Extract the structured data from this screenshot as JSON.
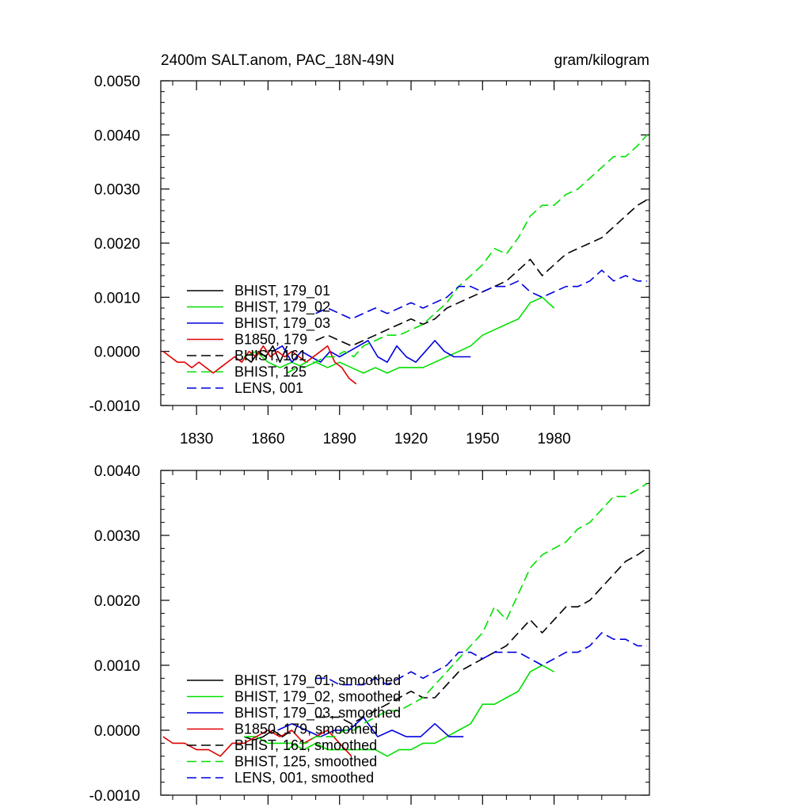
{
  "chart_data": [
    {
      "type": "line",
      "title": "2400m SALT.anom, PAC_18N-49N",
      "units_label": "gram/kilogram",
      "xlabel": "",
      "ylabel": "",
      "xlim": [
        1815,
        2020
      ],
      "ylim": [
        -0.001,
        0.005
      ],
      "xticks": [
        1830,
        1860,
        1890,
        1920,
        1950,
        1980
      ],
      "xtick_labels": [
        "1830",
        "1860",
        "1890",
        "1920",
        "1950",
        "1980"
      ],
      "yticks": [
        -0.001,
        0.0,
        0.001,
        0.002,
        0.003,
        0.004,
        0.005
      ],
      "ytick_labels": [
        "-0.0010",
        "0.0000",
        "0.0010",
        "0.0020",
        "0.0030",
        "0.0040",
        "0.0050"
      ],
      "series": [
        {
          "name": "BHIST, 179_01",
          "color": "#000000",
          "dash": false,
          "x": [
            1850,
            1853,
            1856,
            1859,
            1862,
            1865,
            1868
          ],
          "y": [
            -0.0001,
            -0.0002,
            0.0,
            -0.0001,
            0.0001,
            -0.0002,
            0.0001
          ]
        },
        {
          "name": "BHIST, 179_02",
          "color": "#00e000",
          "dash": false,
          "x": [
            1850,
            1855,
            1860,
            1865,
            1870,
            1875,
            1880,
            1885,
            1890,
            1895,
            1900,
            1905,
            1910,
            1915,
            1920,
            1925,
            1930,
            1935,
            1940,
            1945,
            1950,
            1955,
            1960,
            1965,
            1970,
            1975,
            1980
          ],
          "y": [
            -0.0001,
            0.0,
            -0.0002,
            -0.0003,
            -0.0002,
            -0.0003,
            -0.0002,
            -0.0003,
            -0.0002,
            -0.0003,
            -0.0004,
            -0.0003,
            -0.0004,
            -0.0003,
            -0.0003,
            -0.0003,
            -0.0002,
            -0.0001,
            0.0,
            0.0001,
            0.0003,
            0.0004,
            0.0005,
            0.0006,
            0.0009,
            0.001,
            0.0008
          ]
        },
        {
          "name": "BHIST, 179_03",
          "color": "#0000e0",
          "dash": false,
          "x": [
            1862,
            1866,
            1870,
            1874,
            1878,
            1882,
            1886,
            1890,
            1894,
            1898,
            1902,
            1906,
            1910,
            1914,
            1918,
            1922,
            1926,
            1930,
            1934,
            1938,
            1942,
            1945
          ],
          "y": [
            0.0,
            0.0001,
            -0.0002,
            0.0,
            -0.0001,
            -0.0002,
            0.0,
            -0.0001,
            0.0,
            0.0001,
            0.0002,
            -0.0001,
            -0.0002,
            0.0001,
            -0.0001,
            -0.0002,
            0.0,
            0.0002,
            0.0,
            -0.0001,
            -0.0001,
            -0.0001
          ]
        },
        {
          "name": "B1850, 179",
          "color": "#e00000",
          "dash": false,
          "x": [
            1816,
            1819,
            1822,
            1825,
            1828,
            1831,
            1834,
            1837,
            1840,
            1843,
            1846,
            1849,
            1852,
            1855,
            1858,
            1861,
            1864,
            1867,
            1870,
            1873,
            1876,
            1879,
            1882,
            1885,
            1888,
            1891,
            1894,
            1897
          ],
          "y": [
            0.0,
            -0.0001,
            -0.0002,
            -0.0002,
            -0.0003,
            -0.0002,
            -0.0003,
            -0.0004,
            -0.0003,
            -0.0002,
            -0.0001,
            -0.0002,
            0.0,
            -0.0001,
            0.0001,
            -0.0001,
            0.0,
            -0.0001,
            0.0,
            -0.0001,
            -0.0002,
            -0.0001,
            0.0,
            0.0001,
            -0.0002,
            -0.0003,
            -0.0005,
            -0.0006
          ]
        },
        {
          "name": "BHIST, 161",
          "color": "#000000",
          "dash": true,
          "x": [
            1880,
            1885,
            1890,
            1895,
            1900,
            1905,
            1910,
            1915,
            1920,
            1925,
            1930,
            1935,
            1940,
            1945,
            1950,
            1955,
            1960,
            1965,
            1970,
            1975,
            1980,
            1985,
            1990,
            1995,
            2000,
            2005,
            2010,
            2015,
            2019
          ],
          "y": [
            0.0002,
            0.0003,
            0.0002,
            0.0001,
            0.0002,
            0.0003,
            0.0004,
            0.0005,
            0.0006,
            0.0005,
            0.0006,
            0.0008,
            0.0009,
            0.001,
            0.0011,
            0.0012,
            0.0013,
            0.0015,
            0.0017,
            0.0014,
            0.0016,
            0.0018,
            0.0019,
            0.002,
            0.0021,
            0.0023,
            0.0025,
            0.0027,
            0.0028
          ]
        },
        {
          "name": "BHIST, 125",
          "color": "#00e000",
          "dash": true,
          "x": [
            1868,
            1872,
            1876,
            1880,
            1884,
            1888,
            1892,
            1896,
            1900,
            1905,
            1910,
            1915,
            1920,
            1925,
            1930,
            1935,
            1940,
            1945,
            1950,
            1955,
            1960,
            1965,
            1970,
            1975,
            1980,
            1985,
            1990,
            1995,
            2000,
            2005,
            2010,
            2015,
            2019
          ],
          "y": [
            -0.0004,
            -0.0003,
            -0.0002,
            -0.0002,
            -0.0001,
            -0.0001,
            0.0,
            -0.0001,
            0.0001,
            0.0002,
            0.0003,
            0.0003,
            0.0004,
            0.0005,
            0.0007,
            0.0009,
            0.0012,
            0.0014,
            0.0016,
            0.0019,
            0.0018,
            0.0021,
            0.0025,
            0.0027,
            0.0027,
            0.0029,
            0.003,
            0.0032,
            0.0034,
            0.0036,
            0.0036,
            0.0038,
            0.004
          ]
        },
        {
          "name": "LENS, 001",
          "color": "#0000e0",
          "dash": true,
          "x": [
            1880,
            1885,
            1890,
            1895,
            1900,
            1905,
            1910,
            1915,
            1920,
            1925,
            1930,
            1935,
            1940,
            1945,
            1950,
            1955,
            1960,
            1965,
            1970,
            1975,
            1980,
            1985,
            1990,
            1995,
            2000,
            2005,
            2010,
            2015,
            2019
          ],
          "y": [
            0.0007,
            0.0008,
            0.0007,
            0.0006,
            0.0007,
            0.0008,
            0.0007,
            0.0008,
            0.0009,
            0.0008,
            0.0009,
            0.001,
            0.0012,
            0.0012,
            0.0011,
            0.0012,
            0.0012,
            0.0013,
            0.0011,
            0.001,
            0.0011,
            0.0012,
            0.0012,
            0.0013,
            0.0015,
            0.0013,
            0.0014,
            0.0013,
            0.0013
          ]
        }
      ],
      "legend_position": "lower-left"
    },
    {
      "type": "line",
      "title": "",
      "xlabel": "",
      "ylabel": "",
      "xlim": [
        1815,
        2020
      ],
      "ylim": [
        -0.001,
        0.004
      ],
      "xticks": [
        1830,
        1860,
        1890,
        1920,
        1950,
        1980
      ],
      "xtick_labels": [],
      "yticks": [
        -0.001,
        0.0,
        0.001,
        0.002,
        0.003,
        0.004
      ],
      "ytick_labels": [
        "-0.0010",
        "0.0000",
        "0.0010",
        "0.0020",
        "0.0030",
        "0.0040"
      ],
      "series": [
        {
          "name": "BHIST, 179_01, smoothed",
          "color": "#000000",
          "dash": false,
          "x": [
            1850,
            1854,
            1858,
            1862,
            1866,
            1870
          ],
          "y": [
            -0.0001,
            -0.00015,
            -0.0001,
            0.0,
            -0.0001,
            0.0
          ]
        },
        {
          "name": "BHIST, 179_02, smoothed",
          "color": "#00e000",
          "dash": false,
          "x": [
            1850,
            1855,
            1860,
            1865,
            1870,
            1875,
            1880,
            1885,
            1890,
            1895,
            1900,
            1905,
            1910,
            1915,
            1920,
            1925,
            1930,
            1935,
            1940,
            1945,
            1950,
            1955,
            1960,
            1965,
            1970,
            1975,
            1980
          ],
          "y": [
            -0.0001,
            -0.0001,
            -0.0002,
            -0.0002,
            -0.0002,
            -0.0003,
            -0.0002,
            -0.0003,
            -0.0003,
            -0.0003,
            -0.0003,
            -0.0003,
            -0.0004,
            -0.0003,
            -0.0003,
            -0.0002,
            -0.0002,
            -0.0001,
            0.0,
            0.0001,
            0.0004,
            0.0004,
            0.0005,
            0.0006,
            0.0009,
            0.001,
            0.0009
          ]
        },
        {
          "name": "BHIST, 179_03, smoothed",
          "color": "#0000e0",
          "dash": false,
          "x": [
            1864,
            1870,
            1876,
            1882,
            1888,
            1894,
            1900,
            1906,
            1912,
            1918,
            1924,
            1930,
            1936,
            1942
          ],
          "y": [
            0.0,
            0.0001,
            0.0,
            -0.0001,
            0.0,
            0.0,
            0.0002,
            -0.0001,
            0.0,
            -0.0001,
            -0.0001,
            0.0001,
            -0.0001,
            -0.0001
          ]
        },
        {
          "name": "B1850, 179, smoothed",
          "color": "#e00000",
          "dash": false,
          "x": [
            1816,
            1820,
            1825,
            1830,
            1835,
            1840,
            1845,
            1850,
            1855,
            1860,
            1865,
            1870,
            1875,
            1880,
            1885,
            1890,
            1895
          ],
          "y": [
            -0.0001,
            -0.0002,
            -0.0002,
            -0.0003,
            -0.0003,
            -0.0004,
            -0.0002,
            -0.0002,
            -0.0001,
            0.0,
            -0.0001,
            0.0,
            -0.0002,
            -0.0001,
            0.0,
            -0.0002,
            -0.0004
          ]
        },
        {
          "name": "BHIST, 161, smoothed",
          "color": "#000000",
          "dash": true,
          "x": [
            1880,
            1885,
            1890,
            1895,
            1900,
            1905,
            1910,
            1915,
            1920,
            1925,
            1930,
            1935,
            1940,
            1945,
            1950,
            1955,
            1960,
            1965,
            1970,
            1975,
            1980,
            1985,
            1990,
            1995,
            2000,
            2005,
            2010,
            2015,
            2019
          ],
          "y": [
            0.0002,
            0.0002,
            0.0002,
            0.0001,
            0.0002,
            0.0003,
            0.0004,
            0.0005,
            0.0006,
            0.0005,
            0.0005,
            0.0007,
            0.0009,
            0.001,
            0.0011,
            0.0012,
            0.0013,
            0.0015,
            0.0017,
            0.0015,
            0.0017,
            0.0019,
            0.0019,
            0.002,
            0.0022,
            0.0024,
            0.0026,
            0.0027,
            0.0028
          ]
        },
        {
          "name": "BHIST, 125, smoothed",
          "color": "#00e000",
          "dash": true,
          "x": [
            1868,
            1872,
            1876,
            1880,
            1884,
            1888,
            1892,
            1896,
            1900,
            1905,
            1910,
            1915,
            1920,
            1925,
            1930,
            1935,
            1940,
            1945,
            1950,
            1955,
            1960,
            1965,
            1970,
            1975,
            1980,
            1985,
            1990,
            1995,
            2000,
            2005,
            2010,
            2015,
            2019
          ],
          "y": [
            -0.0003,
            -0.0002,
            -0.0002,
            -0.0001,
            -0.0001,
            -0.0001,
            0.0,
            0.0,
            0.0001,
            0.0002,
            0.0003,
            0.0003,
            0.0004,
            0.0005,
            0.0007,
            0.0009,
            0.0011,
            0.0013,
            0.0015,
            0.0019,
            0.0017,
            0.0021,
            0.0025,
            0.0027,
            0.0028,
            0.0029,
            0.0031,
            0.0032,
            0.0034,
            0.0036,
            0.0036,
            0.0037,
            0.0038
          ]
        },
        {
          "name": "LENS, 001, smoothed",
          "color": "#0000e0",
          "dash": true,
          "x": [
            1880,
            1885,
            1890,
            1895,
            1900,
            1905,
            1910,
            1915,
            1920,
            1925,
            1930,
            1935,
            1940,
            1945,
            1950,
            1955,
            1960,
            1965,
            1970,
            1975,
            1980,
            1985,
            1990,
            1995,
            2000,
            2005,
            2010,
            2015,
            2019
          ],
          "y": [
            0.0008,
            0.0008,
            0.0007,
            0.0007,
            0.0007,
            0.0008,
            0.0007,
            0.0008,
            0.0009,
            0.0008,
            0.0009,
            0.001,
            0.0012,
            0.0012,
            0.0011,
            0.0012,
            0.0012,
            0.0012,
            0.0011,
            0.001,
            0.0011,
            0.0012,
            0.0012,
            0.0013,
            0.0015,
            0.0014,
            0.0014,
            0.0013,
            0.0013
          ]
        }
      ],
      "legend_position": "lower-left"
    }
  ]
}
